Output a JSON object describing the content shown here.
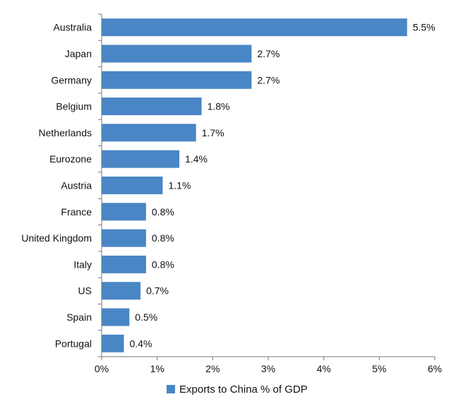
{
  "chart_data": {
    "type": "bar",
    "orientation": "horizontal",
    "categories": [
      "Australia",
      "Japan",
      "Germany",
      "Belgium",
      "Netherlands",
      "Eurozone",
      "Austria",
      "France",
      "United Kingdom",
      "Italy",
      "US",
      "Spain",
      "Portugal"
    ],
    "series": [
      {
        "name": "Exports to China % of GDP",
        "values": [
          5.5,
          2.7,
          2.7,
          1.8,
          1.7,
          1.4,
          1.1,
          0.8,
          0.8,
          0.8,
          0.7,
          0.5,
          0.4
        ],
        "labels": [
          "5.5%",
          "2.7%",
          "2.7%",
          "1.8%",
          "1.7%",
          "1.4%",
          "1.1%",
          "0.8%",
          "0.8%",
          "0.8%",
          "0.7%",
          "0.5%",
          "0.4%"
        ],
        "color": "#4a86c5"
      }
    ],
    "xlim": [
      0,
      6
    ],
    "xticks": [
      "0%",
      "1%",
      "2%",
      "3%",
      "4%",
      "5%",
      "6%"
    ],
    "grid": false,
    "legend": {
      "position": "bottom",
      "entries": [
        "Exports to China % of GDP"
      ]
    }
  }
}
